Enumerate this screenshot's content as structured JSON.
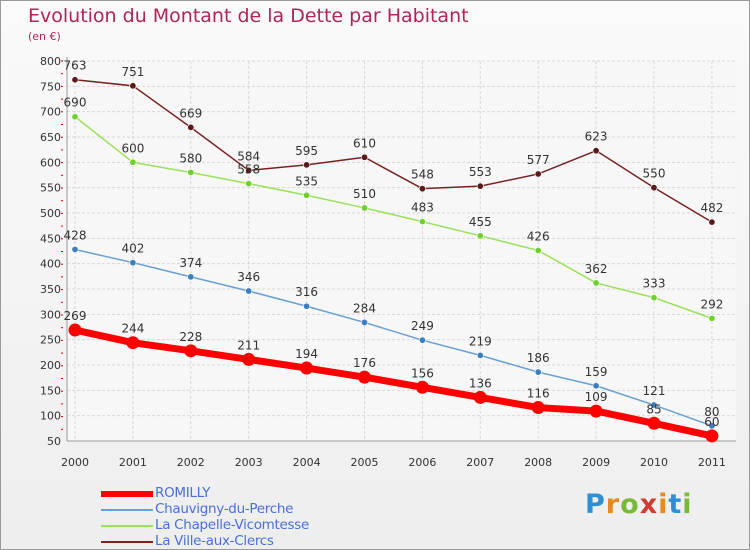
{
  "title": "Evolution du Montant de la Dette par Habitant",
  "subtitle": "(en €)",
  "brand": {
    "text": "Proxiti",
    "letters": [
      "P",
      "r",
      "o",
      "x",
      "i",
      "t",
      "i"
    ],
    "colors": [
      "#2e8fd6",
      "#e8891c",
      "#7ab83a",
      "#d23b2f",
      "#e8891c",
      "#2e8fd6",
      "#7ab83a"
    ]
  },
  "colors": {
    "title": "#b0245a",
    "legend_text": "#4b6fd6",
    "grid": "#d8d8d8",
    "axis_text": "#333333"
  },
  "chart_data": {
    "type": "line",
    "x": [
      "2000",
      "2001",
      "2002",
      "2003",
      "2004",
      "2005",
      "2006",
      "2007",
      "2008",
      "2009",
      "2010",
      "2011"
    ],
    "y_ticks": [
      "50",
      "100",
      "150",
      "200",
      "250",
      "300",
      "350",
      "400",
      "450",
      "500",
      "550",
      "600",
      "650",
      "700",
      "750",
      "800"
    ],
    "ylim": [
      50,
      800
    ],
    "grid": true,
    "legend_position": "bottom-left",
    "series": [
      {
        "name": "La Ville-aux-Clercs",
        "color": "#7a2222",
        "marker": "#5a1a1a",
        "values": [
          763,
          751,
          669,
          584,
          595,
          610,
          548,
          553,
          577,
          623,
          550,
          482
        ],
        "labels": [
          "763",
          "751",
          "669",
          "584",
          "595",
          "610",
          "548",
          "553",
          "577",
          "623",
          "550",
          "482"
        ]
      },
      {
        "name": "La Chapelle-Vicomtesse",
        "color": "#9be05c",
        "marker": "#6fcf2e",
        "values": [
          690,
          600,
          580,
          558,
          535,
          510,
          483,
          455,
          426,
          362,
          333,
          292
        ],
        "labels": [
          "690",
          "600",
          "580",
          "558",
          "535",
          "510",
          "483",
          "455",
          "426",
          "362",
          "333",
          "292"
        ]
      },
      {
        "name": "Chauvigny-du-Perche",
        "color": "#6a9fd0",
        "marker": "#3a7fc0",
        "values": [
          428,
          402,
          374,
          346,
          316,
          284,
          249,
          219,
          186,
          159,
          121,
          80
        ],
        "labels": [
          "428",
          "402",
          "374",
          "346",
          "316",
          "284",
          "249",
          "219",
          "186",
          "159",
          "121",
          "80"
        ]
      },
      {
        "name": "ROMILLY",
        "color": "#ff0000",
        "marker": "#ff0000",
        "values": [
          269,
          244,
          228,
          211,
          194,
          176,
          156,
          136,
          116,
          109,
          85,
          60
        ],
        "labels": [
          "269",
          "244",
          "228",
          "211",
          "194",
          "176",
          "156",
          "136",
          "116",
          "109",
          "85",
          "60"
        ]
      }
    ],
    "legend": [
      "ROMILLY",
      "Chauvigny-du-Perche",
      "La Chapelle-Vicomtesse",
      "La Ville-aux-Clercs"
    ]
  }
}
